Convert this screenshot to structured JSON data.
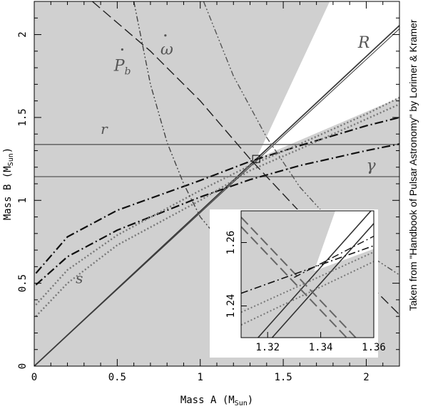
{
  "chart_data": {
    "type": "line",
    "xlabel": "Mass A (M",
    "xlabel_sub": "Sun",
    "xlabel_close": ")",
    "ylabel": "Mass B (M",
    "ylabel_sub": "Sun",
    "ylabel_close": ")",
    "xlim": [
      0,
      2.2
    ],
    "ylim": [
      0,
      2.2
    ],
    "xticks": [
      "0",
      "0.5",
      "1",
      "1.5",
      "2"
    ],
    "yticks": [
      "0",
      "0.5",
      "1",
      "1.5",
      "2"
    ],
    "side_note": "Taken from \"Handbook of Pulsar Astronomy\" by Lorimer & Kramer",
    "labels": {
      "R": "R",
      "r": "r",
      "gamma": "γ",
      "s": "s",
      "omega_dot": "ω",
      "pb_dot": "P",
      "pb_sub": "b"
    },
    "colors": {
      "excluded": "#d0d0d0",
      "allowed": "#ffffff",
      "R_line": "#3c3c3c",
      "r_lines": "#6a6a6a",
      "gamma_lines": "#111111",
      "s_lines": "#777777",
      "omega_dot_line": "#222222",
      "pb_dot_line": "#444444",
      "mass_function": "#555555"
    },
    "series": [
      {
        "name": "R",
        "style": "solid",
        "x": [
          0,
          2.2
        ],
        "y": [
          0,
          2.055
        ]
      },
      {
        "name": "r",
        "style": "solid-horizontal",
        "y_values": [
          1.337,
          1.143
        ]
      },
      {
        "name": "γ",
        "style": "dash-dot",
        "upper": {
          "x": [
            0.01,
            0.2,
            0.5,
            1.0,
            1.3,
            1.6,
            2.0,
            2.2
          ],
          "y": [
            0.56,
            0.78,
            0.94,
            1.12,
            1.235,
            1.33,
            1.45,
            1.5
          ]
        },
        "lower": {
          "x": [
            0.01,
            0.2,
            0.5,
            1.0,
            1.3,
            1.6,
            2.0,
            2.2
          ],
          "y": [
            0.49,
            0.66,
            0.82,
            1.02,
            1.125,
            1.21,
            1.3,
            1.34
          ]
        }
      },
      {
        "name": "s",
        "style": "dotted",
        "upper": {
          "x": [
            0.01,
            0.2,
            0.5,
            1.0,
            1.3,
            1.6,
            2.0,
            2.2
          ],
          "y": [
            0.37,
            0.58,
            0.79,
            1.06,
            1.21,
            1.34,
            1.52,
            1.62
          ]
        },
        "lower": {
          "x": [
            0.01,
            0.2,
            0.5,
            1.0,
            1.3,
            1.6,
            2.0,
            2.2
          ],
          "y": [
            0.3,
            0.5,
            0.73,
            1.0,
            1.18,
            1.31,
            1.49,
            1.58
          ]
        }
      },
      {
        "name": "ω",
        "style": "long-dash",
        "x": [
          0.35,
          0.7,
          1.0,
          1.3,
          1.6,
          1.9,
          2.2
        ],
        "y": [
          2.2,
          1.9,
          1.6,
          1.25,
          0.93,
          0.61,
          0.31
        ]
      },
      {
        "name": "P_b",
        "style": "dash-dot-dot",
        "x": [
          0.6,
          0.7,
          0.8,
          0.9,
          1.0,
          1.1,
          1.2
        ],
        "y": [
          2.2,
          1.7,
          1.35,
          1.1,
          0.9,
          0.78,
          0.72
        ]
      },
      {
        "name": "mass-function",
        "style": "dash-dot-dot",
        "x": [
          1.02,
          1.2,
          1.4,
          1.6,
          1.8,
          2.0,
          2.2
        ],
        "y": [
          2.2,
          1.75,
          1.38,
          1.08,
          0.86,
          0.68,
          0.55
        ]
      }
    ],
    "intersection_box": {
      "x": 1.337,
      "y": 1.25
    },
    "inset": {
      "xlim": [
        1.31,
        1.36
      ],
      "ylim": [
        1.23,
        1.27
      ],
      "xticks": [
        "1.32",
        "1.34",
        "1.36"
      ],
      "yticks": [
        "1.24",
        "1.26"
      ]
    }
  }
}
